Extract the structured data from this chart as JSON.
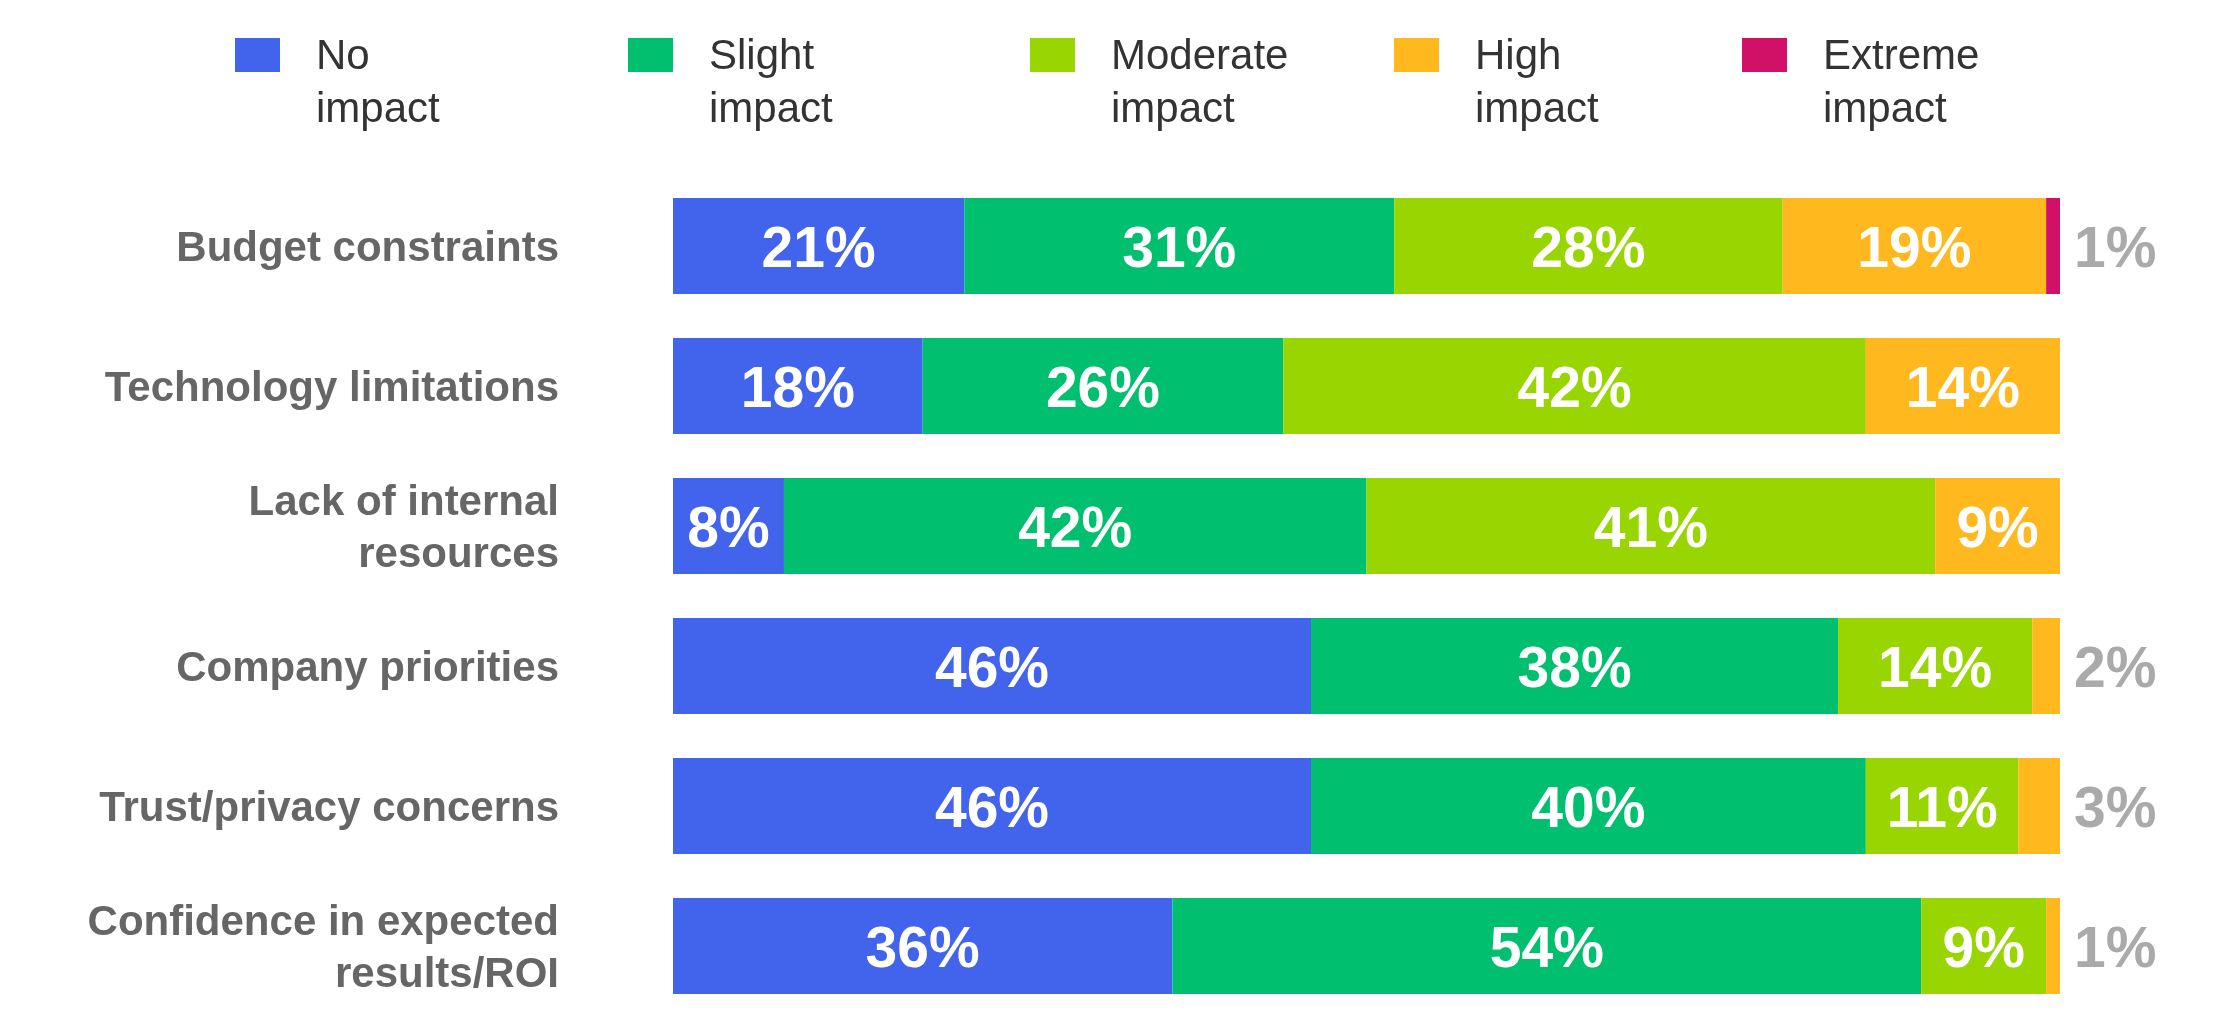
{
  "chart_data": {
    "type": "bar",
    "orientation": "horizontal",
    "stacked": true,
    "legend": "top",
    "categories": [
      "Budget constraints",
      "Technology limitations",
      "Lack of internal resources",
      "Company priorities",
      "Trust/privacy concerns",
      "Confidence in expected results/ROI"
    ],
    "series": [
      {
        "name": "No impact",
        "color": "#4263eb",
        "values": [
          21,
          18,
          8,
          46,
          46,
          36
        ],
        "value_labels": [
          "21%",
          "18%",
          "8%",
          "46%",
          "46%",
          "36%"
        ]
      },
      {
        "name": "Slight impact",
        "color": "#00bf6f",
        "values": [
          31,
          26,
          42,
          38,
          40,
          54
        ],
        "value_labels": [
          "31%",
          "26%",
          "42%",
          "38%",
          "40%",
          "54%"
        ]
      },
      {
        "name": "Moderate impact",
        "color": "#99d500",
        "values": [
          28,
          42,
          41,
          14,
          11,
          9
        ],
        "value_labels": [
          "28%",
          "42%",
          "41%",
          "14%",
          "11%",
          "9%"
        ]
      },
      {
        "name": "High impact",
        "color": "#ffb91e",
        "values": [
          19,
          14,
          9,
          2,
          3,
          1
        ],
        "value_labels": [
          "19%",
          "14%",
          "9%",
          "2%",
          "3%",
          "1%"
        ]
      },
      {
        "name": "Extreme impact",
        "color": "#d11167",
        "values": [
          1,
          null,
          null,
          null,
          null,
          null
        ],
        "value_labels": [
          "1%",
          null,
          null,
          null,
          null,
          null
        ]
      }
    ]
  }
}
